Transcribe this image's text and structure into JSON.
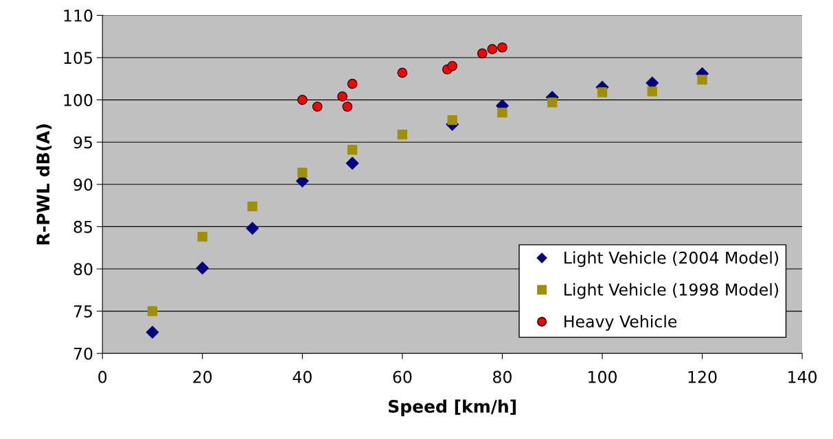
{
  "chart_data": {
    "type": "scatter",
    "xlabel": "Speed [km/h]",
    "ylabel": "R-PWL dB(A)",
    "xlim": [
      0,
      140
    ],
    "xticks": [
      0,
      20,
      40,
      60,
      80,
      100,
      120,
      140
    ],
    "ylim": [
      70,
      110
    ],
    "yticks": [
      70,
      75,
      80,
      85,
      90,
      95,
      100,
      105,
      110
    ],
    "grid": "y",
    "legend": "bottom right",
    "series": [
      {
        "name": "Light Vehicle (2004 Model)",
        "color": "#000080",
        "marker": "diamond",
        "x": [
          10,
          20,
          30,
          40,
          50,
          60,
          70,
          80,
          90,
          100,
          110,
          120
        ],
        "values": [
          72.5,
          80.1,
          84.8,
          90.4,
          92.5,
          null,
          97.1,
          99.3,
          100.3,
          101.5,
          102.0,
          103.1
        ]
      },
      {
        "name": "Light Vehicle (1998 Model)",
        "color": "#a09000",
        "marker": "square",
        "x": [
          10,
          20,
          30,
          40,
          50,
          60,
          70,
          80,
          90,
          100,
          110,
          120
        ],
        "values": [
          75.0,
          83.8,
          87.4,
          91.4,
          94.1,
          95.9,
          97.6,
          98.5,
          99.7,
          100.9,
          101.0,
          102.4
        ]
      },
      {
        "name": "Heavy Vehicle",
        "color": "#ff0000",
        "marker": "circle",
        "x": [
          40,
          43,
          48,
          49,
          50,
          60,
          69,
          70,
          76,
          78,
          80
        ],
        "values": [
          100.0,
          99.2,
          100.4,
          99.2,
          101.9,
          103.2,
          103.6,
          104.0,
          105.5,
          106.0,
          106.2
        ]
      }
    ]
  }
}
